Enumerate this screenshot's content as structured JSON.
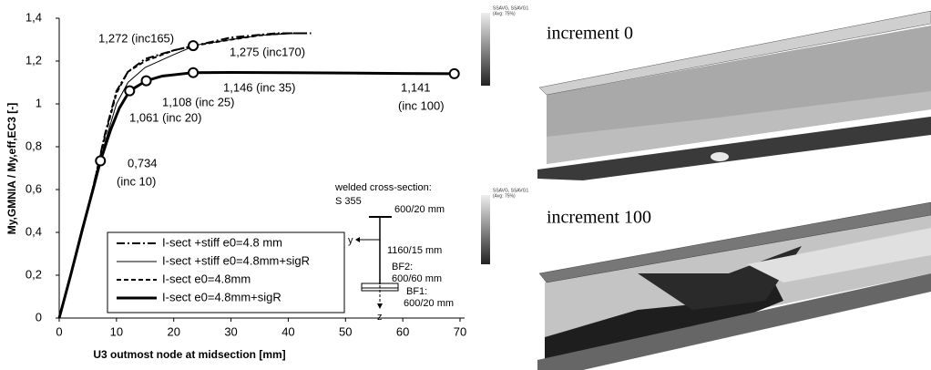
{
  "chart_data": {
    "type": "line",
    "xlabel": "U3 outmost node at midsection [mm]",
    "ylabel": "My,GMNIA / My,eff,EC3  [-]",
    "xlim": [
      0,
      70
    ],
    "xticks": [
      0,
      10,
      20,
      30,
      40,
      50,
      60,
      70
    ],
    "ylim": [
      0,
      1.4
    ],
    "yticks": [
      0,
      {
        "value": 0.2,
        "label": "0,2"
      },
      {
        "value": 0.4,
        "label": "0,4"
      },
      {
        "value": 0.6,
        "label": "0,6"
      },
      {
        "value": 0.8,
        "label": "0,8"
      },
      1,
      {
        "value": 1.2,
        "label": "1,2"
      },
      {
        "value": 1.4,
        "label": "1,4"
      }
    ],
    "series": [
      {
        "name": "I-sect +stiff e0=4.8 mm",
        "color": "#000000",
        "line_style": "dashdot",
        "linewidth": 2,
        "x": [
          0,
          3,
          6,
          8,
          10,
          12,
          15,
          20,
          25,
          30,
          38,
          43
        ],
        "values": [
          0,
          0.3,
          0.62,
          0.86,
          1.06,
          1.15,
          1.21,
          1.25,
          1.28,
          1.31,
          1.33,
          1.33
        ]
      },
      {
        "name": "I-sect +stiff e0=4.8mm+sigR",
        "color": "#000000",
        "line_style": "solid",
        "linewidth": 1,
        "x": [
          0,
          3,
          6,
          8,
          10,
          12,
          15,
          20,
          24,
          30,
          35,
          42
        ],
        "values": [
          0,
          0.29,
          0.6,
          0.82,
          1.0,
          1.1,
          1.17,
          1.23,
          1.275,
          1.3,
          1.32,
          1.33
        ]
      },
      {
        "name": "I-sect e0=4.8mm",
        "color": "#000000",
        "line_style": "dashed",
        "linewidth": 2,
        "x": [
          0,
          3,
          6,
          8,
          10,
          12,
          15,
          20,
          23.5,
          30,
          35,
          40,
          44
        ],
        "values": [
          0,
          0.3,
          0.62,
          0.85,
          1.05,
          1.15,
          1.2,
          1.25,
          1.272,
          1.3,
          1.32,
          1.33,
          1.33
        ]
      },
      {
        "name": "I-sect e0=4.8mm+sigR",
        "color": "#000000",
        "line_style": "solid",
        "linewidth": 3,
        "x": [
          0,
          2,
          4,
          6,
          7.2,
          9,
          10.5,
          12.3,
          15.2,
          18,
          23.4,
          30,
          40,
          50,
          60,
          69
        ],
        "values": [
          0,
          0.2,
          0.41,
          0.61,
          0.734,
          0.88,
          0.98,
          1.061,
          1.108,
          1.13,
          1.146,
          1.147,
          1.146,
          1.144,
          1.142,
          1.141
        ]
      }
    ],
    "markers": {
      "x": [
        7.2,
        12.3,
        15.2,
        23.4,
        69,
        23.4
      ],
      "values": [
        0.734,
        1.061,
        1.108,
        1.146,
        1.141,
        1.272
      ]
    },
    "annotations": [
      "1,272 (inc165)",
      "1,275 (inc170)",
      "1,146 (inc 35)",
      "1,108 (inc 25)",
      "1,061 (inc 20)",
      "1,141",
      "(inc 100)",
      "0,734",
      "(inc 10)"
    ]
  },
  "cross_section": {
    "title": "welded cross-section:",
    "steel": "S 355",
    "top_flange": "600/20 mm",
    "web": "1160/15 mm",
    "y_axis": "y",
    "z_axis": "z",
    "bf2": "BF2:",
    "bf2_size": "600/60 mm",
    "bf1": "BF1:",
    "bf1_size": "600/20 mm"
  },
  "renders": [
    {
      "label": "increment 0",
      "legend_title": "SSAVG, SSAVG1",
      "legend_sub": "(Avg: 75%)"
    },
    {
      "label": "increment 100",
      "legend_title": "SSAVG, SSAVG1",
      "legend_sub": "(Avg: 75%)"
    }
  ]
}
